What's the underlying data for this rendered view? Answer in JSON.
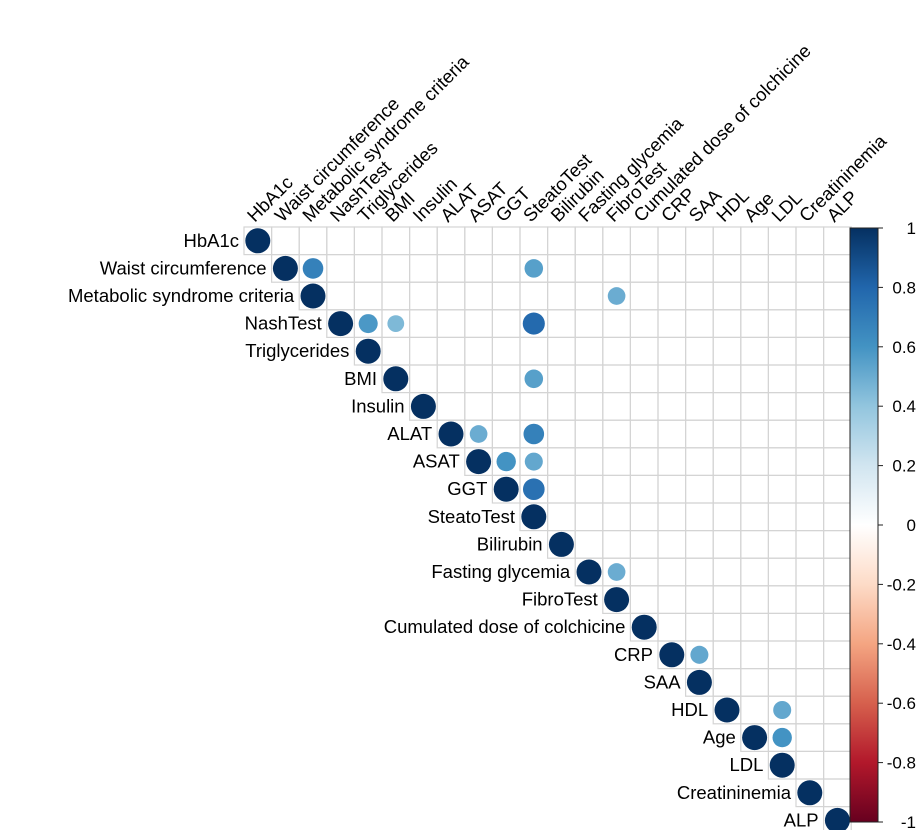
{
  "chart_data": {
    "type": "heatmap",
    "variables": [
      "HbA1c",
      "Waist circumference",
      "Metabolic syndrome criteria",
      "NashTest",
      "Triglycerides",
      "BMI",
      "Insulin",
      "ALAT",
      "ASAT",
      "GGT",
      "SteatoTest",
      "Bilirubin",
      "Fasting glycemia",
      "FibroTest",
      "Cumulated dose of colchicine",
      "CRP",
      "SAA",
      "HDL",
      "Age",
      "LDL",
      "Creatininemia",
      "ALP"
    ],
    "matrix_shape": "upper",
    "diagonal_value": 1,
    "correlations": [
      {
        "row": "Waist circumference",
        "col": "Metabolic syndrome criteria",
        "value": 0.68
      },
      {
        "row": "Waist circumference",
        "col": "SteatoTest",
        "value": 0.55
      },
      {
        "row": "Metabolic syndrome criteria",
        "col": "FibroTest",
        "value": 0.5
      },
      {
        "row": "NashTest",
        "col": "Triglycerides",
        "value": 0.58
      },
      {
        "row": "NashTest",
        "col": "BMI",
        "value": 0.45
      },
      {
        "row": "NashTest",
        "col": "SteatoTest",
        "value": 0.78
      },
      {
        "row": "BMI",
        "col": "SteatoTest",
        "value": 0.55
      },
      {
        "row": "ALAT",
        "col": "ASAT",
        "value": 0.5
      },
      {
        "row": "ALAT",
        "col": "SteatoTest",
        "value": 0.68
      },
      {
        "row": "ASAT",
        "col": "GGT",
        "value": 0.6
      },
      {
        "row": "ASAT",
        "col": "SteatoTest",
        "value": 0.52
      },
      {
        "row": "GGT",
        "col": "SteatoTest",
        "value": 0.75
      },
      {
        "row": "Fasting glycemia",
        "col": "FibroTest",
        "value": 0.5
      },
      {
        "row": "CRP",
        "col": "SAA",
        "value": 0.52
      },
      {
        "row": "HDL",
        "col": "LDL",
        "value": 0.52
      },
      {
        "row": "Age",
        "col": "LDL",
        "value": 0.6
      }
    ],
    "color_scale": {
      "range": [
        -1,
        1
      ],
      "ticks": [
        "1",
        "0.8",
        "0.6",
        "0.4",
        "0.2",
        "0",
        "-0.2",
        "-0.4",
        "-0.6",
        "-0.8",
        "-1"
      ],
      "colors": [
        "#67001F",
        "#B2182B",
        "#D6604D",
        "#F4A582",
        "#FDDBC7",
        "#FFFFFF",
        "#D1E5F0",
        "#92C5DE",
        "#4393C3",
        "#2166AC",
        "#053061"
      ]
    },
    "grid": true,
    "legend_position": "right",
    "title": "",
    "xlabel": "",
    "ylabel": ""
  }
}
